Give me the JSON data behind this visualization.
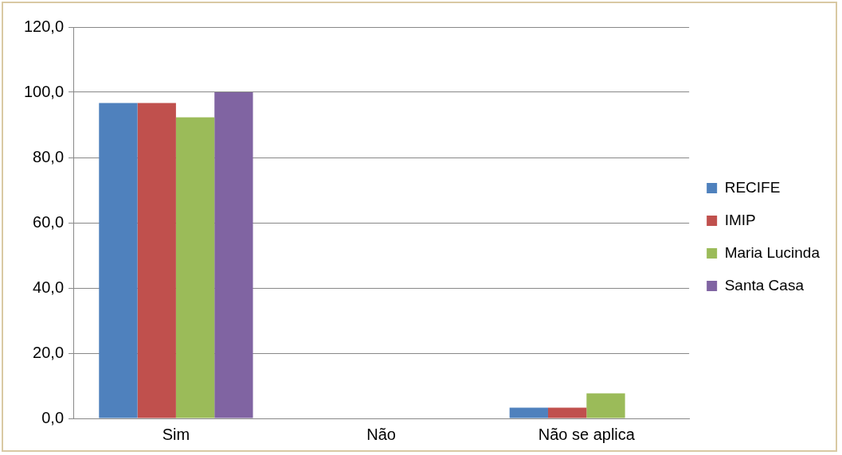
{
  "chart_data": {
    "type": "bar",
    "categories": [
      "Sim",
      "Não",
      "Não se aplica"
    ],
    "series": [
      {
        "name": "RECIFE",
        "color": "#4f81bd",
        "values": [
          96.7,
          0,
          3.3
        ]
      },
      {
        "name": "IMIP",
        "color": "#c0504d",
        "values": [
          96.7,
          0,
          3.3
        ]
      },
      {
        "name": "Maria Lucinda",
        "color": "#9bbb59",
        "values": [
          92.3,
          0,
          7.7
        ]
      },
      {
        "name": "Santa Casa",
        "color": "#8064a2",
        "values": [
          100,
          0,
          0
        ]
      }
    ],
    "ylim": [
      0,
      120
    ],
    "yticks": [
      {
        "value": 0,
        "label": "0,0"
      },
      {
        "value": 20,
        "label": "20,0"
      },
      {
        "value": 40,
        "label": "40,0"
      },
      {
        "value": 60,
        "label": "60,0"
      },
      {
        "value": 80,
        "label": "80,0"
      },
      {
        "value": 100,
        "label": "100,0"
      },
      {
        "value": 120,
        "label": "120,0"
      }
    ],
    "grid": "y",
    "legend": "right"
  }
}
